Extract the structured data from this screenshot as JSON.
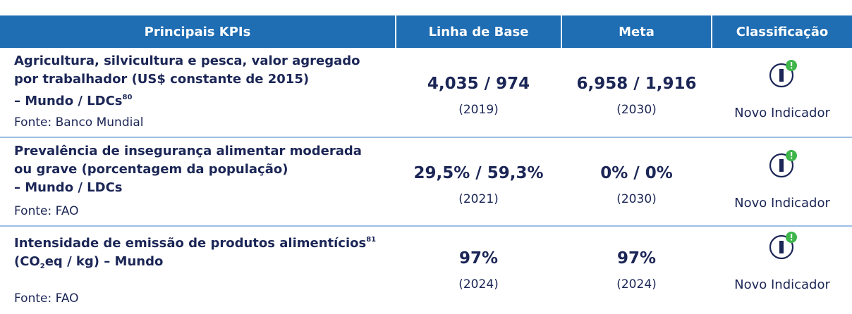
{
  "header": [
    "Principais KPIs",
    "Linha de Base",
    "Meta",
    "Classificação"
  ],
  "rows": [
    {
      "lines": [
        [
          {
            "text": "Agricultura, silvicultura e pesca, valor agregado"
          }
        ],
        [
          {
            "text": "por trabalhador (US$ constante de 2015)"
          }
        ],
        [
          {
            "text": "– Mundo / LDCs"
          },
          {
            "text": "80",
            "style": "sup"
          }
        ]
      ],
      "source": "Fonte: Banco Mundial",
      "baseline": "4,035 / 974",
      "baseline_year": "(2019)",
      "target": "6,958 / 1,916",
      "target_year": "(2030)",
      "classification": "Novo Indicador"
    },
    {
      "lines": [
        [
          {
            "text": "Prevalência de insegurança alimentar moderada"
          }
        ],
        [
          {
            "text": "ou grave (porcentagem da população)"
          }
        ],
        [
          {
            "text": "– Mundo / LDCs"
          }
        ]
      ],
      "source": "Fonte: FAO",
      "baseline": "29,5% / 59,3%",
      "baseline_year": "(2021)",
      "target": "0% / 0%",
      "target_year": "(2030)",
      "classification": "Novo Indicador"
    },
    {
      "lines": [
        [
          {
            "text": "Intensidade de emissão de produtos alimentícios"
          },
          {
            "text": "81",
            "style": "sup"
          }
        ],
        [
          {
            "text": "(CO"
          },
          {
            "text": "2",
            "style": "sub"
          },
          {
            "text": "eq / kg) – Mundo"
          }
        ]
      ],
      "source": "Fonte: FAO",
      "baseline": "97%",
      "baseline_year": "(2024)",
      "target": "97%",
      "target_year": "(2024)",
      "classification": "Novo Indicador"
    }
  ]
}
